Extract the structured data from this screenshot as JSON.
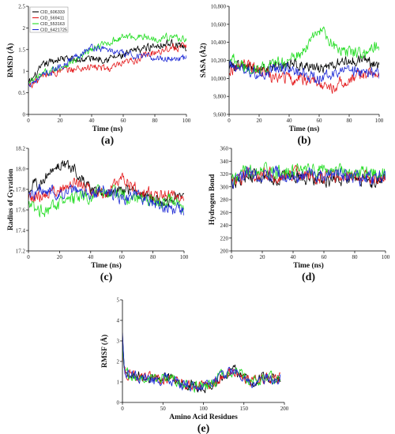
{
  "legend": [
    {
      "name": "CID_606333",
      "color": "#000000"
    },
    {
      "name": "CID_569411",
      "color": "#e41a1c"
    },
    {
      "name": "CID_553163",
      "color": "#22dd22"
    },
    {
      "name": "CID_6421725",
      "color": "#1f2bd6"
    }
  ],
  "chart_data": [
    {
      "id": "a",
      "letter": "(a)",
      "type": "line",
      "xlabel": "Time (ns)",
      "ylabel": "RMSD (Å)",
      "xlim": [
        0,
        100
      ],
      "ylim": [
        0,
        2.5
      ],
      "xticks": [
        0,
        20,
        40,
        60,
        80,
        100
      ],
      "yticks": [
        0,
        0.5,
        1,
        1.5,
        2,
        2.5
      ],
      "yticklabels": [
        "0",
        "0.5",
        "1",
        "1.5",
        "2",
        "2.5"
      ],
      "legend_placement": "top-left",
      "series": [
        {
          "name": "CID_606333",
          "color": "#000000",
          "x": [
            0,
            10,
            20,
            30,
            40,
            50,
            60,
            70,
            80,
            90,
            100
          ],
          "y": [
            0.7,
            1.15,
            1.3,
            1.25,
            1.3,
            1.3,
            1.35,
            1.5,
            1.6,
            1.65,
            1.55
          ],
          "noise": 0.08
        },
        {
          "name": "CID_569411",
          "color": "#e41a1c",
          "x": [
            0,
            10,
            20,
            30,
            40,
            50,
            60,
            70,
            80,
            90,
            100
          ],
          "y": [
            0.65,
            0.9,
            1.0,
            1.05,
            1.1,
            1.05,
            1.15,
            1.3,
            1.45,
            1.55,
            1.55
          ],
          "noise": 0.08
        },
        {
          "name": "CID_553163",
          "color": "#22dd22",
          "x": [
            0,
            10,
            20,
            30,
            40,
            50,
            60,
            70,
            80,
            90,
            100
          ],
          "y": [
            0.7,
            0.95,
            1.1,
            1.25,
            1.5,
            1.65,
            1.8,
            1.8,
            1.75,
            1.8,
            1.75
          ],
          "noise": 0.07
        },
        {
          "name": "CID_6421725",
          "color": "#1f2bd6",
          "x": [
            0,
            10,
            20,
            30,
            40,
            50,
            60,
            70,
            80,
            90,
            100
          ],
          "y": [
            0.7,
            0.9,
            1.1,
            1.35,
            1.55,
            1.5,
            1.4,
            1.35,
            1.3,
            1.3,
            1.3
          ],
          "noise": 0.07
        }
      ]
    },
    {
      "id": "b",
      "letter": "(b)",
      "type": "line",
      "xlabel": "Time (ns)",
      "ylabel": "SASA (Å2)",
      "xlim": [
        0,
        100
      ],
      "ylim": [
        9600,
        10800
      ],
      "xticks": [
        0,
        20,
        40,
        60,
        80,
        100
      ],
      "yticks": [
        9600,
        9800,
        10000,
        10200,
        10400,
        10600,
        10800
      ],
      "yticklabels": [
        "9,600",
        "9,800",
        "10,000",
        "10,200",
        "10,400",
        "10,600",
        "10,800"
      ],
      "series": [
        {
          "name": "CID_606333",
          "color": "#000000",
          "x": [
            0,
            10,
            20,
            30,
            40,
            50,
            60,
            70,
            80,
            90,
            100
          ],
          "y": [
            10150,
            10120,
            10100,
            10150,
            10150,
            10160,
            10100,
            10150,
            10200,
            10200,
            10150
          ],
          "noise": 55
        },
        {
          "name": "CID_569411",
          "color": "#e41a1c",
          "x": [
            0,
            10,
            20,
            30,
            40,
            50,
            60,
            70,
            80,
            90,
            100
          ],
          "y": [
            10100,
            10150,
            10120,
            10000,
            10000,
            10000,
            9950,
            9900,
            10000,
            10050,
            10050
          ],
          "noise": 60
        },
        {
          "name": "CID_553163",
          "color": "#22dd22",
          "x": [
            0,
            10,
            20,
            30,
            40,
            50,
            60,
            70,
            80,
            90,
            100
          ],
          "y": [
            10250,
            10100,
            10100,
            10150,
            10200,
            10300,
            10550,
            10350,
            10300,
            10300,
            10350
          ],
          "noise": 60
        },
        {
          "name": "CID_6421725",
          "color": "#1f2bd6",
          "x": [
            0,
            10,
            20,
            30,
            40,
            50,
            60,
            70,
            80,
            90,
            100
          ],
          "y": [
            10150,
            10100,
            10050,
            10100,
            10100,
            10050,
            10000,
            10050,
            10100,
            10050,
            10050
          ],
          "noise": 55
        }
      ]
    },
    {
      "id": "c",
      "letter": "(c)",
      "type": "line",
      "xlabel": "Time (ns)",
      "ylabel": "Radius of Gyration",
      "xlim": [
        0,
        100
      ],
      "ylim": [
        17.2,
        18.2
      ],
      "xticks": [
        0,
        20,
        40,
        60,
        80,
        100
      ],
      "yticks": [
        17.2,
        17.4,
        17.6,
        17.8,
        18.0,
        18.2
      ],
      "yticklabels": [
        "17.2",
        "17.4",
        "17.6",
        "17.8",
        "18.0",
        "18.2"
      ],
      "series": [
        {
          "name": "CID_606333",
          "color": "#000000",
          "x": [
            0,
            10,
            20,
            30,
            40,
            50,
            60,
            70,
            80,
            90,
            100
          ],
          "y": [
            17.8,
            17.9,
            18.05,
            18.0,
            17.8,
            17.75,
            17.8,
            17.75,
            17.7,
            17.7,
            17.75
          ],
          "noise": 0.05
        },
        {
          "name": "CID_569411",
          "color": "#e41a1c",
          "x": [
            0,
            10,
            20,
            30,
            40,
            50,
            60,
            70,
            80,
            90,
            100
          ],
          "y": [
            17.7,
            17.75,
            17.8,
            17.85,
            17.8,
            17.75,
            17.9,
            17.8,
            17.75,
            17.75,
            17.7
          ],
          "noise": 0.05
        },
        {
          "name": "CID_553163",
          "color": "#22dd22",
          "x": [
            0,
            10,
            20,
            30,
            40,
            50,
            60,
            70,
            80,
            90,
            100
          ],
          "y": [
            17.65,
            17.6,
            17.65,
            17.7,
            17.75,
            17.75,
            17.75,
            17.7,
            17.7,
            17.7,
            17.65
          ],
          "noise": 0.06
        },
        {
          "name": "CID_6421725",
          "color": "#1f2bd6",
          "x": [
            0,
            10,
            20,
            30,
            40,
            50,
            60,
            70,
            80,
            90,
            100
          ],
          "y": [
            17.75,
            17.8,
            17.75,
            17.8,
            17.75,
            17.8,
            17.7,
            17.75,
            17.65,
            17.6,
            17.6
          ],
          "noise": 0.05
        }
      ]
    },
    {
      "id": "d",
      "letter": "(d)",
      "type": "line",
      "xlabel": "Time (ns)",
      "ylabel": "Hydrogen Bond",
      "xlim": [
        0,
        100
      ],
      "ylim": [
        200,
        360
      ],
      "xticks": [
        0,
        20,
        40,
        60,
        80,
        100
      ],
      "yticks": [
        200,
        220,
        240,
        260,
        280,
        300,
        320,
        340,
        360
      ],
      "yticklabels": [
        "200",
        "220",
        "240",
        "260",
        "280",
        "300",
        "320",
        "340",
        "360"
      ],
      "series": [
        {
          "name": "CID_606333",
          "color": "#000000",
          "x": [
            0,
            10,
            20,
            30,
            40,
            50,
            60,
            70,
            80,
            90,
            100
          ],
          "y": [
            300,
            318,
            315,
            314,
            315,
            312,
            312,
            310,
            310,
            308,
            310
          ],
          "noise": 9
        },
        {
          "name": "CID_569411",
          "color": "#e41a1c",
          "x": [
            0,
            10,
            20,
            30,
            40,
            50,
            60,
            70,
            80,
            90,
            100
          ],
          "y": [
            305,
            320,
            320,
            318,
            320,
            318,
            316,
            318,
            315,
            315,
            315
          ],
          "noise": 9
        },
        {
          "name": "CID_553163",
          "color": "#22dd22",
          "x": [
            0,
            10,
            20,
            30,
            40,
            50,
            60,
            70,
            80,
            90,
            100
          ],
          "y": [
            310,
            325,
            325,
            322,
            324,
            324,
            326,
            324,
            322,
            322,
            322
          ],
          "noise": 9
        },
        {
          "name": "CID_6421725",
          "color": "#1f2bd6",
          "x": [
            0,
            10,
            20,
            30,
            40,
            50,
            60,
            70,
            80,
            90,
            100
          ],
          "y": [
            305,
            322,
            322,
            320,
            320,
            318,
            318,
            316,
            316,
            312,
            312
          ],
          "noise": 10
        }
      ]
    },
    {
      "id": "e",
      "letter": "(e)",
      "type": "line",
      "xlabel": "Amino Acid Residues",
      "ylabel": "RMSF (Å)",
      "xlim": [
        0,
        200
      ],
      "ylim": [
        0,
        5
      ],
      "xticks": [
        0,
        50,
        100,
        150,
        200
      ],
      "yticks": [
        0,
        1,
        2,
        3,
        4,
        5
      ],
      "yticklabels": [
        "0",
        "1",
        "2",
        "3",
        "4",
        "5"
      ],
      "series": [
        {
          "name": "CID_606333",
          "color": "#000000",
          "x": [
            0,
            2,
            5,
            15,
            25,
            40,
            50,
            60,
            70,
            80,
            90,
            100,
            110,
            120,
            130,
            140,
            150,
            160,
            170,
            180,
            190,
            195
          ],
          "y": [
            3.3,
            1.8,
            1.4,
            1.3,
            1.2,
            1.1,
            1.2,
            1.1,
            1.0,
            0.9,
            0.8,
            0.8,
            0.9,
            1.2,
            1.4,
            1.5,
            1.3,
            1.0,
            1.1,
            1.2,
            1.1,
            1.2
          ],
          "noise": 0.25
        },
        {
          "name": "CID_569411",
          "color": "#e41a1c",
          "x": [
            0,
            2,
            5,
            15,
            25,
            40,
            50,
            60,
            70,
            80,
            90,
            100,
            110,
            120,
            130,
            140,
            150,
            160,
            170,
            180,
            190,
            195
          ],
          "y": [
            2.5,
            1.7,
            1.4,
            1.3,
            1.2,
            1.1,
            1.2,
            1.1,
            1.0,
            0.9,
            0.8,
            0.8,
            0.9,
            1.2,
            1.4,
            1.5,
            1.3,
            1.0,
            1.1,
            1.2,
            1.1,
            1.2
          ],
          "noise": 0.25
        },
        {
          "name": "CID_553163",
          "color": "#22dd22",
          "x": [
            0,
            2,
            5,
            15,
            25,
            40,
            50,
            60,
            70,
            80,
            90,
            100,
            110,
            120,
            130,
            140,
            150,
            160,
            170,
            180,
            190,
            195
          ],
          "y": [
            2.8,
            1.7,
            1.4,
            1.3,
            1.2,
            1.1,
            1.2,
            1.1,
            1.0,
            0.9,
            0.8,
            0.8,
            0.9,
            1.2,
            1.4,
            1.5,
            1.3,
            1.0,
            1.1,
            1.2,
            1.1,
            1.2
          ],
          "noise": 0.25
        },
        {
          "name": "CID_6421725",
          "color": "#1f2bd6",
          "x": [
            0,
            2,
            5,
            15,
            25,
            40,
            50,
            60,
            70,
            80,
            90,
            100,
            110,
            120,
            130,
            140,
            150,
            160,
            170,
            180,
            190,
            195
          ],
          "y": [
            3.4,
            1.8,
            1.4,
            1.3,
            1.2,
            1.1,
            1.2,
            1.1,
            1.0,
            0.9,
            0.8,
            0.8,
            0.9,
            1.2,
            1.4,
            1.5,
            1.3,
            1.0,
            1.1,
            1.2,
            1.1,
            1.2
          ],
          "noise": 0.25
        }
      ]
    }
  ]
}
